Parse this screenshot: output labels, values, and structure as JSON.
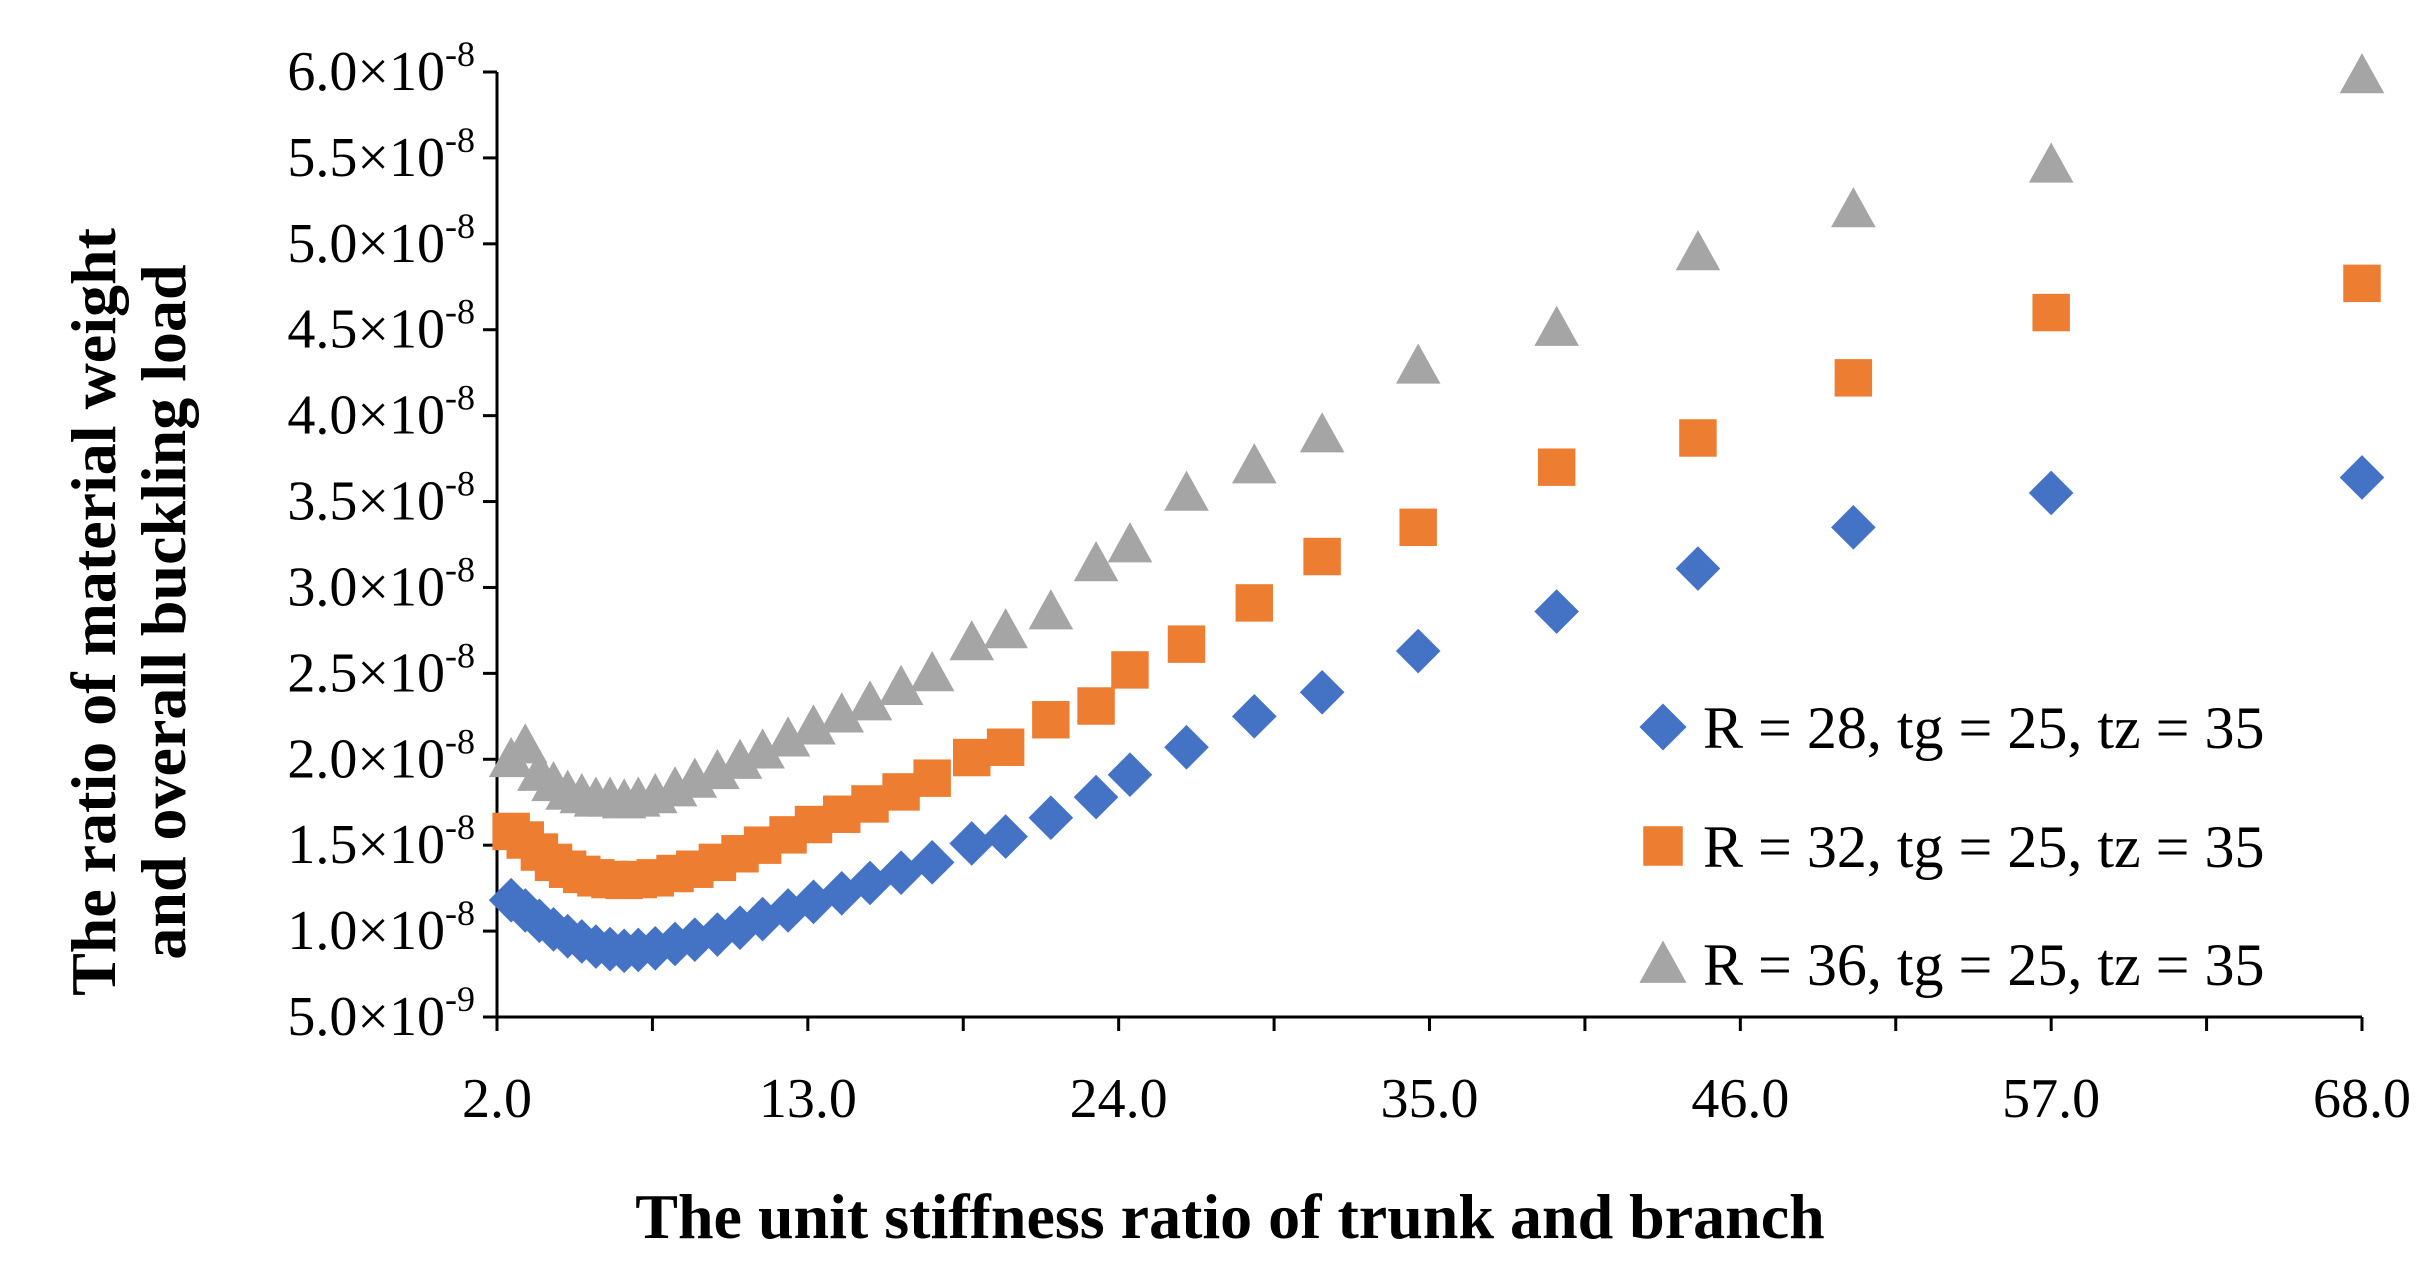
{
  "chart_data": {
    "type": "scatter",
    "title": "",
    "xlabel": "The unit stiffness ratio of trunk and branch",
    "ylabel": [
      "The ratio of material weight",
      "and overall buckling load"
    ],
    "xlim": [
      2.0,
      68.0
    ],
    "ylim": [
      5e-09,
      6e-08
    ],
    "x_ticks": [
      2.0,
      13.0,
      24.0,
      35.0,
      46.0,
      57.0,
      68.0
    ],
    "x_tick_labels": [
      "2.0",
      "13.0",
      "24.0",
      "35.0",
      "46.0",
      "57.0",
      "68.0"
    ],
    "y_ticks": [
      5e-09,
      1e-08,
      1.5e-08,
      2e-08,
      2.5e-08,
      3e-08,
      3.5e-08,
      4e-08,
      4.5e-08,
      5e-08,
      5.5e-08,
      6e-08
    ],
    "y_tick_labels": [
      {
        "mantissa": "5.0",
        "times": "×",
        "base": "10",
        "exp": "-9"
      },
      {
        "mantissa": "1.0",
        "times": "×",
        "base": "10",
        "exp": "-8"
      },
      {
        "mantissa": "1.5",
        "times": "×",
        "base": "10",
        "exp": "-8"
      },
      {
        "mantissa": "2.0",
        "times": "×",
        "base": "10",
        "exp": "-8"
      },
      {
        "mantissa": "2.5",
        "times": "×",
        "base": "10",
        "exp": "-8"
      },
      {
        "mantissa": "3.0",
        "times": "×",
        "base": "10",
        "exp": "-8"
      },
      {
        "mantissa": "3.5",
        "times": "×",
        "base": "10",
        "exp": "-8"
      },
      {
        "mantissa": "4.0",
        "times": "×",
        "base": "10",
        "exp": "-8"
      },
      {
        "mantissa": "4.5",
        "times": "×",
        "base": "10",
        "exp": "-8"
      },
      {
        "mantissa": "5.0",
        "times": "×",
        "base": "10",
        "exp": "-8"
      },
      {
        "mantissa": "5.5",
        "times": "×",
        "base": "10",
        "exp": "-8"
      },
      {
        "mantissa": "6.0",
        "times": "×",
        "base": "10",
        "exp": "-8"
      }
    ],
    "grid": false,
    "legend_position": "right",
    "series": [
      {
        "name": "R = 28, tg = 25, tz = 35",
        "marker": "diamond",
        "color": "#4472C4",
        "points": [
          [
            2.5,
            11.8
          ],
          [
            3.0,
            11.2
          ],
          [
            3.5,
            10.6
          ],
          [
            4.0,
            10.1
          ],
          [
            4.5,
            9.7
          ],
          [
            5.0,
            9.4
          ],
          [
            5.5,
            9.1
          ],
          [
            6.0,
            8.95
          ],
          [
            6.5,
            8.85
          ],
          [
            7.0,
            8.9
          ],
          [
            7.6,
            9.0
          ],
          [
            8.3,
            9.25
          ],
          [
            9.0,
            9.5
          ],
          [
            9.8,
            9.8
          ],
          [
            10.6,
            10.2
          ],
          [
            11.4,
            10.7
          ],
          [
            12.3,
            11.2
          ],
          [
            13.2,
            11.7
          ],
          [
            14.2,
            12.2
          ],
          [
            15.2,
            12.8
          ],
          [
            16.3,
            13.4
          ],
          [
            17.4,
            14.0
          ],
          [
            18.8,
            15.1
          ],
          [
            20.0,
            15.5
          ],
          [
            21.6,
            16.6
          ],
          [
            23.2,
            17.8
          ],
          [
            24.4,
            19.1
          ],
          [
            26.4,
            20.7
          ],
          [
            28.8,
            22.5
          ],
          [
            31.2,
            23.9
          ],
          [
            34.6,
            26.3
          ],
          [
            39.5,
            28.6
          ],
          [
            44.5,
            31.1
          ],
          [
            50.0,
            33.5
          ],
          [
            57.0,
            35.5
          ],
          [
            68.0,
            36.4
          ]
        ]
      },
      {
        "name": "R = 32, tg = 25, tz = 35",
        "marker": "square",
        "color": "#ED7D31",
        "points": [
          [
            2.5,
            15.8
          ],
          [
            3.0,
            15.3
          ],
          [
            3.5,
            14.6
          ],
          [
            4.0,
            14.0
          ],
          [
            4.5,
            13.6
          ],
          [
            5.0,
            13.3
          ],
          [
            5.5,
            13.1
          ],
          [
            6.0,
            13.0
          ],
          [
            6.5,
            12.95
          ],
          [
            7.0,
            13.0
          ],
          [
            7.6,
            13.1
          ],
          [
            8.3,
            13.35
          ],
          [
            9.0,
            13.6
          ],
          [
            9.8,
            14.0
          ],
          [
            10.6,
            14.5
          ],
          [
            11.4,
            15.0
          ],
          [
            12.3,
            15.6
          ],
          [
            13.2,
            16.2
          ],
          [
            14.2,
            16.8
          ],
          [
            15.2,
            17.4
          ],
          [
            16.3,
            18.1
          ],
          [
            17.4,
            18.9
          ],
          [
            18.8,
            20.1
          ],
          [
            20.0,
            20.7
          ],
          [
            21.6,
            22.3
          ],
          [
            23.2,
            23.1
          ],
          [
            24.4,
            25.2
          ],
          [
            26.4,
            26.7
          ],
          [
            28.8,
            29.1
          ],
          [
            31.2,
            31.8
          ],
          [
            34.6,
            33.5
          ],
          [
            39.5,
            37.0
          ],
          [
            44.5,
            38.7
          ],
          [
            50.0,
            42.2
          ],
          [
            57.0,
            46.0
          ],
          [
            68.0,
            47.7
          ]
        ]
      },
      {
        "name": "R = 36, tg = 25, tz = 35",
        "marker": "triangle",
        "color": "#A5A5A5",
        "points": [
          [
            2.5,
            20.0
          ],
          [
            3.0,
            20.8
          ],
          [
            3.5,
            19.2
          ],
          [
            4.0,
            18.6
          ],
          [
            4.5,
            18.1
          ],
          [
            5.0,
            17.9
          ],
          [
            5.5,
            17.7
          ],
          [
            6.0,
            17.7
          ],
          [
            6.5,
            17.6
          ],
          [
            7.0,
            17.7
          ],
          [
            7.6,
            17.9
          ],
          [
            8.3,
            18.3
          ],
          [
            9.0,
            18.8
          ],
          [
            9.8,
            19.3
          ],
          [
            10.6,
            19.9
          ],
          [
            11.4,
            20.5
          ],
          [
            12.3,
            21.2
          ],
          [
            13.2,
            21.9
          ],
          [
            14.2,
            22.6
          ],
          [
            15.2,
            23.3
          ],
          [
            16.3,
            24.2
          ],
          [
            17.4,
            25.0
          ],
          [
            18.8,
            26.8
          ],
          [
            20.0,
            27.5
          ],
          [
            21.6,
            28.6
          ],
          [
            23.2,
            31.4
          ],
          [
            24.4,
            32.5
          ],
          [
            26.4,
            35.5
          ],
          [
            28.8,
            37.1
          ],
          [
            31.2,
            38.9
          ],
          [
            34.6,
            42.9
          ],
          [
            39.5,
            45.1
          ],
          [
            44.5,
            49.5
          ],
          [
            50.0,
            52.0
          ],
          [
            57.0,
            54.6
          ],
          [
            68.0,
            59.8
          ]
        ]
      }
    ],
    "y_unit_scale": 1e-09
  }
}
